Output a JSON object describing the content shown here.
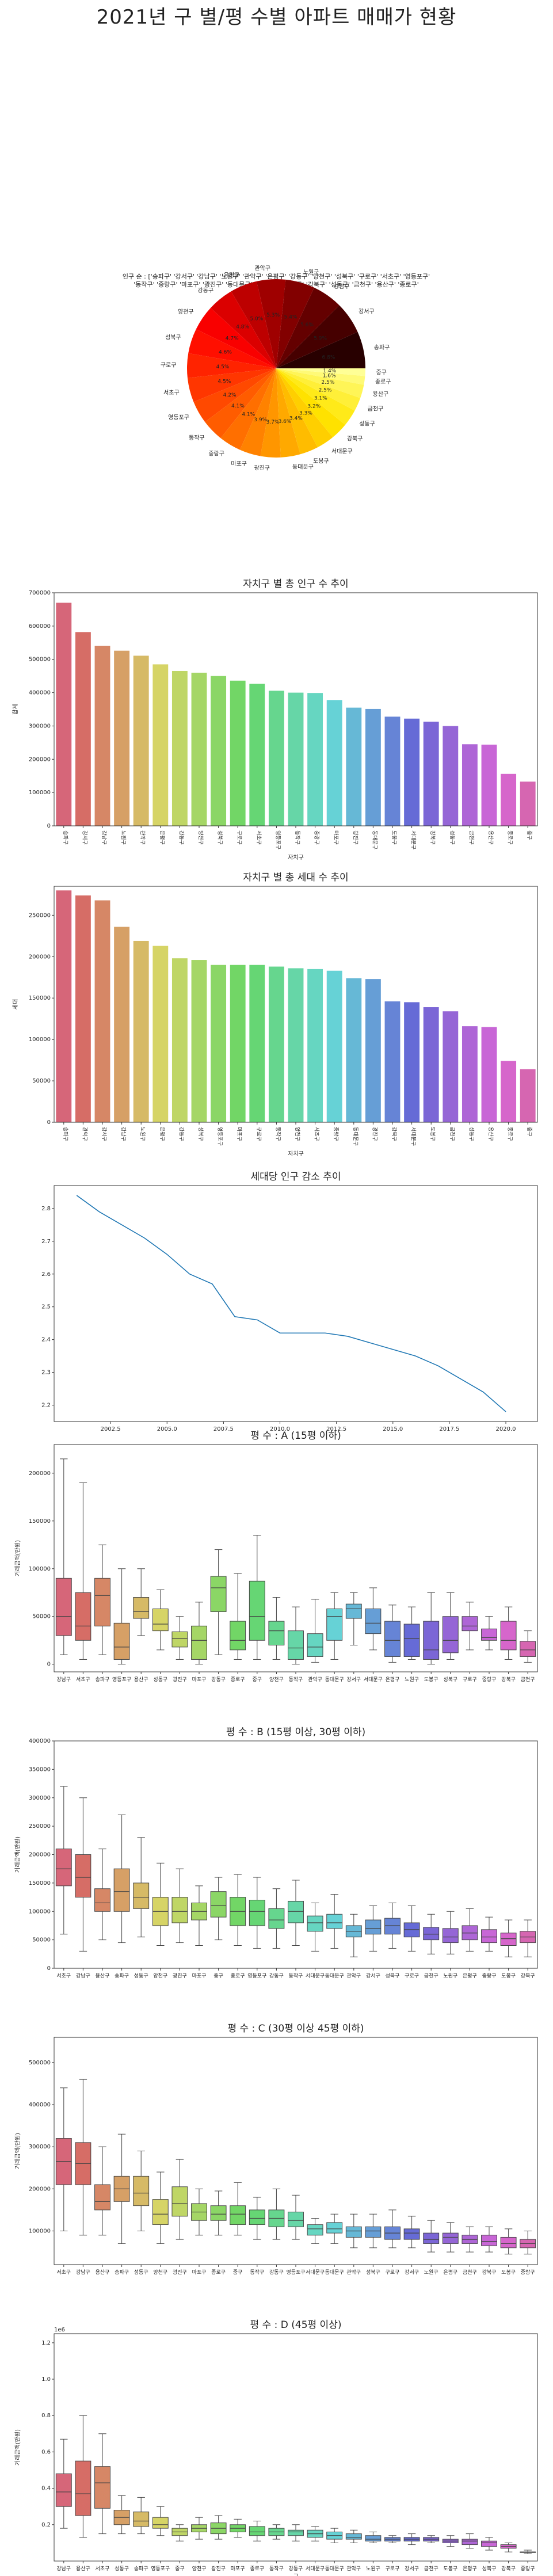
{
  "page_title": "2021년 구 별/평 수별 아파트 매매가 현황",
  "chart_data": [
    {
      "type": "pie",
      "title": "인구 순 : ['송파구' '강서구' '강남구' '노원구' '관악구' '은평구' '강동구' '양천구' '성북구' '구로구' '서초구' '영등포구'\n '동작구' '중랑구' '마포구' '광진구' '동대문구' '도봉구' '서대문구' '강북구' '성동구' '금천구' '용산구' '종로구'\n '중구']",
      "categories": [
        "송파구",
        "강서구",
        "강남구",
        "노원구",
        "관악구",
        "은평구",
        "강동구",
        "양천구",
        "성북구",
        "구로구",
        "서초구",
        "영등포구",
        "동작구",
        "중랑구",
        "마포구",
        "광진구",
        "동대문구",
        "도봉구",
        "서대문구",
        "강북구",
        "성동구",
        "금천구",
        "용산구",
        "종로구",
        "중구"
      ],
      "values": [
        6.8,
        5.9,
        5.6,
        5.4,
        5.3,
        5.0,
        4.8,
        4.7,
        4.6,
        4.5,
        4.5,
        4.2,
        4.1,
        4.1,
        3.9,
        3.7,
        3.6,
        3.4,
        3.3,
        3.2,
        3.1,
        2.5,
        2.5,
        1.6,
        1.4
      ],
      "labels": [
        "6.8%",
        "5.9%",
        "5.6%",
        "5.4%",
        "5.3%",
        "5.0%",
        "4.8%",
        "4.7%",
        "4.6%",
        "4.5%",
        "4.5%",
        "4.2%",
        "4.1%",
        "4.1%",
        "3.9%",
        "3.7%",
        "3.6%",
        "3.4%",
        "3.3%",
        "3.2%",
        "3.1%",
        "2.5%",
        "2.5%",
        "1.6%",
        "1.4%"
      ]
    },
    {
      "type": "bar",
      "title": "자치구 별 총 인구 수 추이",
      "xlabel": "자치구",
      "ylabel": "합계",
      "ylim": [
        0,
        700000
      ],
      "yticks": [
        "0",
        "100000",
        "200000",
        "300000",
        "400000",
        "500000",
        "600000",
        "700000"
      ],
      "categories": [
        "송파구",
        "강서구",
        "강남구",
        "노원구",
        "관악구",
        "은평구",
        "강동구",
        "양천구",
        "성북구",
        "구로구",
        "서초구",
        "영등포구",
        "동작구",
        "중랑구",
        "마포구",
        "광진구",
        "동대문구",
        "도봉구",
        "서대문구",
        "강북구",
        "성동구",
        "금천구",
        "용산구",
        "종로구",
        "중구"
      ],
      "values": [
        670000,
        582000,
        541000,
        526000,
        511000,
        485000,
        465000,
        460000,
        450000,
        436000,
        427000,
        406000,
        400000,
        399000,
        378000,
        355000,
        351000,
        328000,
        322000,
        313000,
        300000,
        245000,
        244000,
        156000,
        133000
      ]
    },
    {
      "type": "bar",
      "title": "자치구 별 총 세대 수 추이",
      "xlabel": "자치구",
      "ylabel": "세대",
      "ylim": [
        0,
        285000
      ],
      "yticks": [
        "0",
        "50000",
        "100000",
        "150000",
        "200000",
        "250000"
      ],
      "categories": [
        "송파구",
        "관악구",
        "강서구",
        "강남구",
        "노원구",
        "은평구",
        "강동구",
        "성북구",
        "영등포구",
        "마포구",
        "구로구",
        "동작구",
        "양천구",
        "서초구",
        "중랑구",
        "동대문구",
        "광진구",
        "강북구",
        "서대문구",
        "도봉구",
        "금천구",
        "성동구",
        "용산구",
        "종로구",
        "중구"
      ],
      "values": [
        280000,
        274000,
        268000,
        236000,
        219000,
        213000,
        198000,
        196000,
        190000,
        190000,
        190000,
        188000,
        186000,
        185000,
        183000,
        174000,
        173000,
        146000,
        145000,
        139000,
        134000,
        116000,
        115000,
        74000,
        64000
      ]
    },
    {
      "type": "line",
      "title": "세대당 인구 감소 추이",
      "xlim": [
        2000,
        2021.4
      ],
      "ylim": [
        2.15,
        2.87
      ],
      "xticks": [
        "2002.5",
        "2005.0",
        "2007.5",
        "2010.0",
        "2012.5",
        "2015.0",
        "2017.5",
        "2020.0"
      ],
      "yticks": [
        "2.2",
        "2.3",
        "2.4",
        "2.5",
        "2.6",
        "2.7",
        "2.8"
      ],
      "x": [
        2001,
        2002,
        2003,
        2004,
        2005,
        2006,
        2007,
        2008,
        2009,
        2010,
        2011,
        2012,
        2013,
        2014,
        2015,
        2016,
        2017,
        2018,
        2019,
        2020
      ],
      "y": [
        2.84,
        2.79,
        2.75,
        2.71,
        2.66,
        2.6,
        2.57,
        2.47,
        2.46,
        2.42,
        2.42,
        2.42,
        2.41,
        2.39,
        2.37,
        2.35,
        2.32,
        2.28,
        2.24,
        2.18
      ]
    },
    {
      "type": "box",
      "title": "평 수 : A  (15평 이하)",
      "xlabel": "",
      "ylabel": "거래금액(만원)",
      "ylim": [
        -8000,
        230000
      ],
      "yticks": [
        "0",
        "50000",
        "100000",
        "150000",
        "200000"
      ],
      "categories": [
        "강남구",
        "서초구",
        "송파구",
        "영등포구",
        "용산구",
        "성동구",
        "광진구",
        "마포구",
        "강동구",
        "종로구",
        "중구",
        "양천구",
        "동작구",
        "관악구",
        "동대문구",
        "강서구",
        "서대문구",
        "은평구",
        "노원구",
        "도봉구",
        "성북구",
        "구로구",
        "중랑구",
        "강북구",
        "금천구"
      ],
      "stats": [
        [
          10000,
          30000,
          50000,
          90000,
          215000
        ],
        [
          5000,
          25000,
          40000,
          75000,
          190000
        ],
        [
          10000,
          40000,
          72000,
          90000,
          125000
        ],
        [
          0,
          5000,
          18000,
          43000,
          100000
        ],
        [
          30000,
          48000,
          55000,
          70000,
          100000
        ],
        [
          15000,
          35000,
          42000,
          58000,
          78000
        ],
        [
          5000,
          18000,
          27000,
          34000,
          50000
        ],
        [
          0,
          5000,
          25000,
          40000,
          65000
        ],
        [
          10000,
          55000,
          80000,
          92000,
          120000
        ],
        [
          5000,
          15000,
          25000,
          45000,
          95000
        ],
        [
          5000,
          25000,
          50000,
          87000,
          135000
        ],
        [
          5000,
          20000,
          35000,
          45000,
          70000
        ],
        [
          0,
          5000,
          17000,
          35000,
          60000
        ],
        [
          2000,
          8000,
          18000,
          32000,
          68000
        ],
        [
          5000,
          25000,
          50000,
          58000,
          75000
        ],
        [
          20000,
          48000,
          58000,
          63000,
          75000
        ],
        [
          15000,
          32000,
          43000,
          58000,
          80000
        ],
        [
          2000,
          8000,
          25000,
          45000,
          62000
        ],
        [
          5000,
          8000,
          27000,
          42000,
          60000
        ],
        [
          0,
          5000,
          15000,
          45000,
          75000
        ],
        [
          5000,
          12000,
          25000,
          50000,
          75000
        ],
        [
          15000,
          35000,
          40000,
          50000,
          65000
        ],
        [
          15000,
          25000,
          28000,
          37000,
          50000
        ],
        [
          5000,
          15000,
          25000,
          45000,
          60000
        ],
        [
          2000,
          8000,
          15000,
          24000,
          35000
        ]
      ]
    },
    {
      "type": "box",
      "title": "평 수 : B  (15평 이상, 30평 이하)",
      "xlabel": "",
      "ylabel": "거래금액(만원)",
      "ylim": [
        0,
        400000
      ],
      "yticks": [
        "0",
        "50000",
        "100000",
        "150000",
        "200000",
        "250000",
        "300000",
        "350000",
        "400000"
      ],
      "categories": [
        "서초구",
        "강남구",
        "용산구",
        "송파구",
        "성동구",
        "양천구",
        "광진구",
        "마포구",
        "중구",
        "종로구",
        "영등포구",
        "강동구",
        "동작구",
        "서대문구",
        "동대문구",
        "관악구",
        "강서구",
        "성북구",
        "구로구",
        "금천구",
        "노원구",
        "은평구",
        "중랑구",
        "도봉구",
        "강북구"
      ],
      "stats": [
        [
          60000,
          145000,
          175000,
          210000,
          320000
        ],
        [
          30000,
          125000,
          160000,
          200000,
          300000
        ],
        [
          50000,
          100000,
          115000,
          140000,
          210000
        ],
        [
          45000,
          100000,
          135000,
          175000,
          270000
        ],
        [
          55000,
          105000,
          125000,
          150000,
          230000
        ],
        [
          40000,
          75000,
          100000,
          125000,
          185000
        ],
        [
          45000,
          80000,
          100000,
          125000,
          175000
        ],
        [
          40000,
          85000,
          100000,
          115000,
          145000
        ],
        [
          50000,
          90000,
          110000,
          135000,
          160000
        ],
        [
          40000,
          75000,
          100000,
          125000,
          165000
        ],
        [
          35000,
          75000,
          100000,
          120000,
          160000
        ],
        [
          35000,
          70000,
          85000,
          105000,
          140000
        ],
        [
          40000,
          80000,
          100000,
          118000,
          155000
        ],
        [
          30000,
          65000,
          80000,
          92000,
          115000
        ],
        [
          35000,
          70000,
          80000,
          95000,
          130000
        ],
        [
          20000,
          55000,
          65000,
          75000,
          95000
        ],
        [
          30000,
          60000,
          70000,
          85000,
          110000
        ],
        [
          35000,
          60000,
          75000,
          88000,
          115000
        ],
        [
          30000,
          55000,
          68000,
          80000,
          110000
        ],
        [
          25000,
          50000,
          60000,
          72000,
          95000
        ],
        [
          25000,
          45000,
          55000,
          70000,
          100000
        ],
        [
          30000,
          50000,
          62000,
          75000,
          105000
        ],
        [
          30000,
          45000,
          55000,
          68000,
          90000
        ],
        [
          20000,
          40000,
          52000,
          62000,
          85000
        ],
        [
          20000,
          45000,
          55000,
          65000,
          85000
        ]
      ]
    },
    {
      "type": "box",
      "title": "평 수 : C  (30평 이상 45평 이하)",
      "xlabel": "",
      "ylabel": "거래금액(만원)",
      "ylim": [
        20000,
        560000
      ],
      "yticks": [
        "100000",
        "200000",
        "300000",
        "400000",
        "500000"
      ],
      "categories": [
        "서초구",
        "강남구",
        "용산구",
        "송파구",
        "성동구",
        "양천구",
        "광진구",
        "마포구",
        "종로구",
        "중구",
        "동작구",
        "강동구",
        "영등포구",
        "서대문구",
        "동대문구",
        "관악구",
        "성북구",
        "구로구",
        "강서구",
        "노원구",
        "은평구",
        "금천구",
        "강북구",
        "도봉구",
        "중랑구"
      ],
      "stats": [
        [
          100000,
          210000,
          265000,
          320000,
          440000
        ],
        [
          90000,
          210000,
          260000,
          310000,
          460000
        ],
        [
          90000,
          150000,
          170000,
          210000,
          300000
        ],
        [
          70000,
          170000,
          200000,
          230000,
          330000
        ],
        [
          100000,
          160000,
          190000,
          230000,
          290000
        ],
        [
          70000,
          115000,
          140000,
          175000,
          240000
        ],
        [
          80000,
          135000,
          165000,
          205000,
          270000
        ],
        [
          90000,
          125000,
          145000,
          165000,
          200000
        ],
        [
          90000,
          125000,
          140000,
          160000,
          195000
        ],
        [
          90000,
          115000,
          140000,
          160000,
          215000
        ],
        [
          80000,
          115000,
          130000,
          150000,
          180000
        ],
        [
          80000,
          110000,
          130000,
          150000,
          200000
        ],
        [
          80000,
          110000,
          125000,
          145000,
          185000
        ],
        [
          70000,
          90000,
          105000,
          115000,
          130000
        ],
        [
          70000,
          95000,
          105000,
          120000,
          140000
        ],
        [
          60000,
          85000,
          100000,
          110000,
          140000
        ],
        [
          60000,
          85000,
          100000,
          110000,
          140000
        ],
        [
          60000,
          80000,
          95000,
          110000,
          150000
        ],
        [
          60000,
          80000,
          95000,
          105000,
          135000
        ],
        [
          50000,
          70000,
          80000,
          95000,
          125000
        ],
        [
          50000,
          70000,
          85000,
          95000,
          120000
        ],
        [
          50000,
          70000,
          80000,
          90000,
          110000
        ],
        [
          50000,
          65000,
          75000,
          90000,
          110000
        ],
        [
          45000,
          60000,
          70000,
          85000,
          105000
        ],
        [
          45000,
          60000,
          70000,
          80000,
          100000
        ]
      ]
    },
    {
      "type": "box",
      "title": "평 수 : D  (45평 이상)",
      "xlabel": "구",
      "ylabel": "거래금액(만원)",
      "multiplier": "1e6",
      "ylim": [
        0,
        1.25
      ],
      "yticks": [
        "0.2",
        "0.4",
        "0.6",
        "0.8",
        "1.0",
        "1.2"
      ],
      "categories": [
        "강남구",
        "용산구",
        "서초구",
        "성동구",
        "송파구",
        "영등포구",
        "중구",
        "양천구",
        "광진구",
        "마포구",
        "종로구",
        "동작구",
        "강동구",
        "서대문구",
        "동대문구",
        "관악구",
        "노원구",
        "구로구",
        "강서구",
        "금천구",
        "도봉구",
        "은평구",
        "성북구",
        "강북구",
        "중랑구"
      ],
      "stats": [
        [
          0.18,
          0.3,
          0.38,
          0.48,
          0.67
        ],
        [
          0.13,
          0.25,
          0.37,
          0.55,
          0.8
        ],
        [
          0.15,
          0.29,
          0.43,
          0.52,
          0.7
        ],
        [
          0.15,
          0.2,
          0.24,
          0.28,
          0.36
        ],
        [
          0.15,
          0.19,
          0.22,
          0.27,
          0.35
        ],
        [
          0.14,
          0.18,
          0.2,
          0.24,
          0.3
        ],
        [
          0.11,
          0.14,
          0.16,
          0.18,
          0.2
        ],
        [
          0.12,
          0.16,
          0.18,
          0.2,
          0.24
        ],
        [
          0.12,
          0.15,
          0.18,
          0.21,
          0.25
        ],
        [
          0.13,
          0.16,
          0.18,
          0.2,
          0.23
        ],
        [
          0.11,
          0.14,
          0.16,
          0.19,
          0.22
        ],
        [
          0.12,
          0.14,
          0.16,
          0.18,
          0.2
        ],
        [
          0.11,
          0.14,
          0.16,
          0.17,
          0.2
        ],
        [
          0.11,
          0.13,
          0.15,
          0.17,
          0.19
        ],
        [
          0.1,
          0.12,
          0.14,
          0.16,
          0.18
        ],
        [
          0.1,
          0.12,
          0.13,
          0.15,
          0.17
        ],
        [
          0.1,
          0.11,
          0.12,
          0.14,
          0.16
        ],
        [
          0.1,
          0.11,
          0.12,
          0.13,
          0.14
        ],
        [
          0.09,
          0.11,
          0.12,
          0.13,
          0.15
        ],
        [
          0.1,
          0.11,
          0.12,
          0.13,
          0.14
        ],
        [
          0.08,
          0.1,
          0.11,
          0.12,
          0.14
        ],
        [
          0.07,
          0.09,
          0.11,
          0.12,
          0.15
        ],
        [
          0.06,
          0.08,
          0.1,
          0.11,
          0.13
        ],
        [
          0.05,
          0.07,
          0.08,
          0.09,
          0.1
        ],
        [
          0.04,
          0.05,
          0.05,
          0.05,
          0.06
        ]
      ]
    }
  ]
}
